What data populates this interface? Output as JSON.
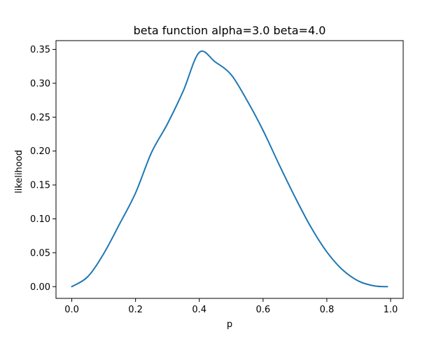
{
  "chart_data": {
    "type": "line",
    "title": "beta function alpha=3.0 beta=4.0",
    "xlabel": "p",
    "ylabel": "likelihood",
    "xlim": [
      -0.0495,
      1.0395
    ],
    "ylim": [
      -0.0173,
      0.3629
    ],
    "xticks": [
      0.0,
      0.2,
      0.4,
      0.6,
      0.8,
      1.0
    ],
    "xtick_labels": [
      "0.0",
      "0.2",
      "0.4",
      "0.6",
      "0.8",
      "1.0"
    ],
    "yticks": [
      0.0,
      0.05,
      0.1,
      0.15,
      0.2,
      0.25,
      0.3,
      0.35
    ],
    "ytick_labels": [
      "0.00",
      "0.05",
      "0.10",
      "0.15",
      "0.20",
      "0.25",
      "0.30",
      "0.35"
    ],
    "grid": false,
    "series": [
      {
        "color": "#1f77b4",
        "x": [
          0.0,
          0.05,
          0.1,
          0.15,
          0.2,
          0.25,
          0.3,
          0.35,
          0.4,
          0.45,
          0.5,
          0.55,
          0.6,
          0.65,
          0.7,
          0.75,
          0.8,
          0.85,
          0.9,
          0.95,
          0.99
        ],
        "values": [
          0.0,
          0.0146,
          0.0486,
          0.0925,
          0.1382,
          0.1978,
          0.2401,
          0.289,
          0.3456,
          0.3314,
          0.3125,
          0.2744,
          0.2304,
          0.1804,
          0.1323,
          0.0879,
          0.0512,
          0.0245,
          0.0081,
          0.001,
          0.0
        ]
      }
    ]
  }
}
